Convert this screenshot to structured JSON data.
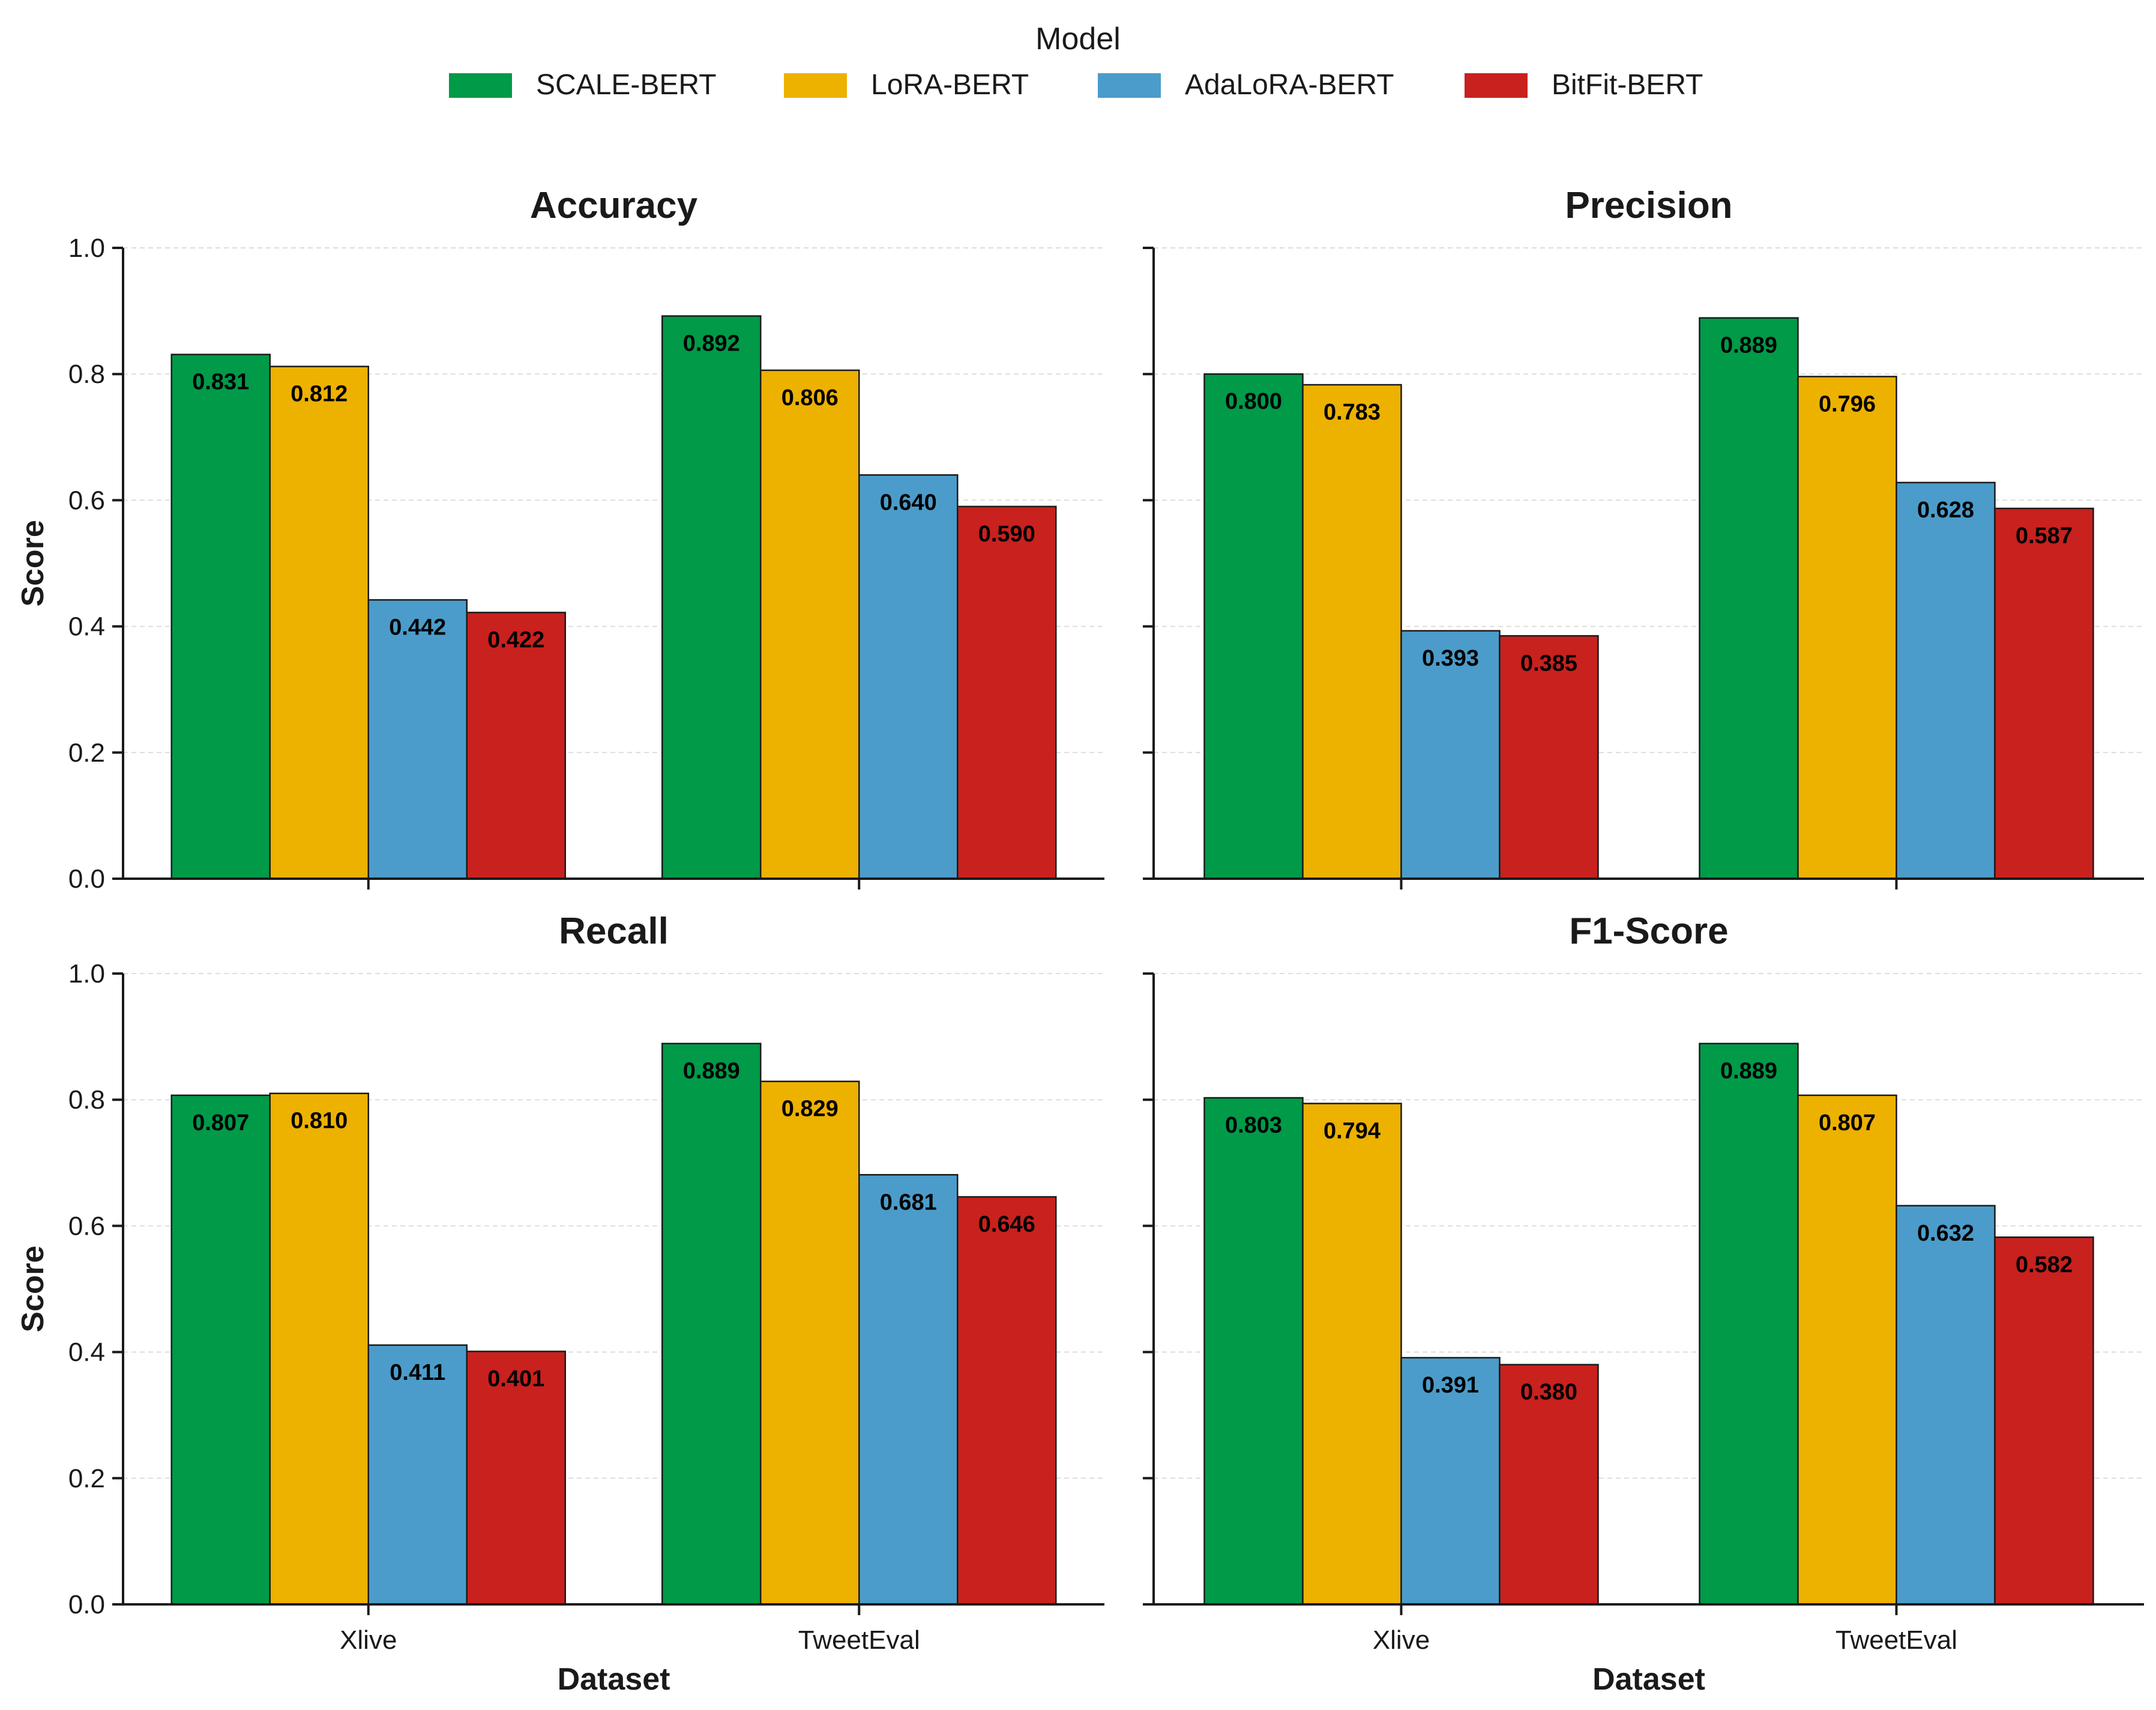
{
  "legend": {
    "title": "Model",
    "items": [
      {
        "label": "SCALE-BERT",
        "color": "#009A49"
      },
      {
        "label": "LoRA-BERT",
        "color": "#EDB100"
      },
      {
        "label": "AdaLoRA-BERT",
        "color": "#4B9CCA"
      },
      {
        "label": "BitFit-BERT",
        "color": "#C8211E"
      }
    ]
  },
  "chart_data": [
    {
      "type": "bar",
      "title": "Accuracy",
      "xlabel": "",
      "ylabel": "Score",
      "ylim": [
        0,
        1.0
      ],
      "yticks": [
        "0.0",
        "0.2",
        "0.4",
        "0.6",
        "0.8",
        "1.0"
      ],
      "categories": [
        "Xlive",
        "TweetEval"
      ],
      "show_xtick_labels": false,
      "grid": "y-dashed",
      "series": [
        {
          "name": "SCALE-BERT",
          "values": [
            0.831,
            0.892
          ]
        },
        {
          "name": "LoRA-BERT",
          "values": [
            0.812,
            0.806
          ]
        },
        {
          "name": "AdaLoRA-BERT",
          "values": [
            0.442,
            0.64
          ]
        },
        {
          "name": "BitFit-BERT",
          "values": [
            0.422,
            0.59
          ]
        }
      ]
    },
    {
      "type": "bar",
      "title": "Precision",
      "xlabel": "",
      "ylabel": "",
      "ylim": [
        0,
        1.0
      ],
      "yticks": [
        "",
        "",
        "",
        "",
        "",
        ""
      ],
      "categories": [
        "Xlive",
        "TweetEval"
      ],
      "show_xtick_labels": false,
      "grid": "y-dashed",
      "series": [
        {
          "name": "SCALE-BERT",
          "values": [
            0.8,
            0.889
          ]
        },
        {
          "name": "LoRA-BERT",
          "values": [
            0.783,
            0.796
          ]
        },
        {
          "name": "AdaLoRA-BERT",
          "values": [
            0.393,
            0.628
          ]
        },
        {
          "name": "BitFit-BERT",
          "values": [
            0.385,
            0.587
          ]
        }
      ]
    },
    {
      "type": "bar",
      "title": "Recall",
      "xlabel": "Dataset",
      "ylabel": "Score",
      "ylim": [
        0,
        1.0
      ],
      "yticks": [
        "0.0",
        "0.2",
        "0.4",
        "0.6",
        "0.8",
        "1.0"
      ],
      "categories": [
        "Xlive",
        "TweetEval"
      ],
      "show_xtick_labels": true,
      "grid": "y-dashed",
      "series": [
        {
          "name": "SCALE-BERT",
          "values": [
            0.807,
            0.889
          ]
        },
        {
          "name": "LoRA-BERT",
          "values": [
            0.81,
            0.829
          ]
        },
        {
          "name": "AdaLoRA-BERT",
          "values": [
            0.411,
            0.681
          ]
        },
        {
          "name": "BitFit-BERT",
          "values": [
            0.401,
            0.646
          ]
        }
      ]
    },
    {
      "type": "bar",
      "title": "F1-Score",
      "xlabel": "Dataset",
      "ylabel": "",
      "ylim": [
        0,
        1.0
      ],
      "yticks": [
        "",
        "",
        "",
        "",
        "",
        ""
      ],
      "categories": [
        "Xlive",
        "TweetEval"
      ],
      "show_xtick_labels": true,
      "grid": "y-dashed",
      "series": [
        {
          "name": "SCALE-BERT",
          "values": [
            0.803,
            0.889
          ]
        },
        {
          "name": "LoRA-BERT",
          "values": [
            0.794,
            0.807
          ]
        },
        {
          "name": "AdaLoRA-BERT",
          "values": [
            0.391,
            0.632
          ]
        },
        {
          "name": "BitFit-BERT",
          "values": [
            0.38,
            0.582
          ]
        }
      ]
    }
  ]
}
